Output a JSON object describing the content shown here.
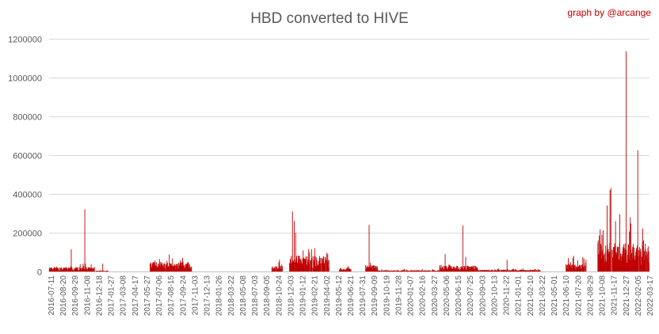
{
  "chart_data": {
    "type": "bar",
    "title": "HBD converted to HIVE",
    "credit": "graph by @arcange",
    "xlabel": "",
    "ylabel": "",
    "ylim": [
      0,
      1200000
    ],
    "yticks": [
      0,
      200000,
      400000,
      600000,
      800000,
      1000000,
      1200000
    ],
    "ytick_labels": [
      "0",
      "200000",
      "400000",
      "600000",
      "800000",
      "1000000",
      "1200000"
    ],
    "x_range": [
      "2016-07-11",
      "2022-03-17"
    ],
    "xtick_labels": [
      "2016-07-11",
      "2016-08-20",
      "2016-09-29",
      "2016-11-08",
      "2016-12-18",
      "2017-01-27",
      "2017-03-08",
      "2017-04-17",
      "2017-05-27",
      "2017-07-06",
      "2017-08-15",
      "2017-09-24",
      "2017-11-03",
      "2017-12-13",
      "2018-01-26",
      "2018-03-22",
      "2018-05-08",
      "2018-07-03",
      "2018-09-05",
      "2018-10-24",
      "2018-12-03",
      "2019-01-12",
      "2019-02-21",
      "2019-04-02",
      "2019-05-12",
      "2019-06-21",
      "2019-07-31",
      "2019-09-09",
      "2019-10-19",
      "2019-11-28",
      "2020-01-07",
      "2020-02-16",
      "2020-03-27",
      "2020-05-06",
      "2020-06-15",
      "2020-07-25",
      "2020-09-03",
      "2020-10-13",
      "2020-11-22",
      "2021-01-01",
      "2021-02-10",
      "2021-03-22",
      "2021-05-01",
      "2021-06-10",
      "2021-07-20",
      "2021-08-29",
      "2021-10-08",
      "2021-11-17",
      "2021-12-27",
      "2022-02-05",
      "2022-03-17"
    ],
    "grid": true,
    "legend": "none",
    "colors": {
      "bar": "#c00000",
      "title": "#595959",
      "credit": "#c00000",
      "grid": "#d9d9d9"
    },
    "segments": [
      {
        "from": "2016-07-11",
        "to": "2016-12-15",
        "base": 14000,
        "amp": 12000
      },
      {
        "from": "2016-12-16",
        "to": "2017-01-30",
        "base": 2500,
        "amp": 2500
      },
      {
        "from": "2017-06-25",
        "to": "2017-11-15",
        "base": 30000,
        "amp": 18000
      },
      {
        "from": "2018-08-20",
        "to": "2018-09-25",
        "base": 18000,
        "amp": 20000
      },
      {
        "from": "2018-10-20",
        "to": "2019-03-05",
        "base": 50000,
        "amp": 40000
      },
      {
        "from": "2019-04-10",
        "to": "2019-05-20",
        "base": 12000,
        "amp": 10000
      },
      {
        "from": "2019-07-10",
        "to": "2019-08-20",
        "base": 20000,
        "amp": 18000
      },
      {
        "from": "2019-08-21",
        "to": "2020-03-20",
        "base": 4000,
        "amp": 5000
      },
      {
        "from": "2020-03-21",
        "to": "2020-07-31",
        "base": 18000,
        "amp": 16000
      },
      {
        "from": "2020-08-01",
        "to": "2021-03-05",
        "base": 6000,
        "amp": 7000
      },
      {
        "from": "2021-06-01",
        "to": "2021-08-10",
        "base": 25000,
        "amp": 25000
      },
      {
        "from": "2021-09-20",
        "to": "2022-03-17",
        "base": 90000,
        "amp": 80000
      }
    ],
    "spikes": [
      {
        "x": "2016-07-28",
        "y": 22000
      },
      {
        "x": "2016-09-25",
        "y": 115000
      },
      {
        "x": "2016-11-05",
        "y": 40000
      },
      {
        "x": "2016-11-11",
        "y": 320000
      },
      {
        "x": "2017-01-12",
        "y": 40000
      },
      {
        "x": "2017-08-30",
        "y": 88000
      },
      {
        "x": "2017-10-15",
        "y": 70000
      },
      {
        "x": "2018-09-15",
        "y": 60000
      },
      {
        "x": "2018-10-30",
        "y": 310000
      },
      {
        "x": "2018-11-05",
        "y": 260000
      },
      {
        "x": "2018-11-10",
        "y": 200000
      },
      {
        "x": "2018-12-25",
        "y": 115000
      },
      {
        "x": "2019-01-15",
        "y": 120000
      },
      {
        "x": "2019-03-01",
        "y": 90000
      },
      {
        "x": "2019-07-22",
        "y": 240000
      },
      {
        "x": "2020-04-10",
        "y": 90000
      },
      {
        "x": "2020-06-10",
        "y": 238000
      },
      {
        "x": "2020-06-20",
        "y": 75000
      },
      {
        "x": "2020-11-10",
        "y": 60000
      },
      {
        "x": "2021-06-28",
        "y": 80000
      },
      {
        "x": "2021-10-22",
        "y": 340000
      },
      {
        "x": "2021-11-01",
        "y": 420000
      },
      {
        "x": "2021-11-04",
        "y": 430000
      },
      {
        "x": "2021-11-20",
        "y": 260000
      },
      {
        "x": "2021-12-05",
        "y": 295000
      },
      {
        "x": "2021-12-27",
        "y": 1135000
      },
      {
        "x": "2022-01-10",
        "y": 280000
      },
      {
        "x": "2022-02-05",
        "y": 625000
      },
      {
        "x": "2022-02-25",
        "y": 160000
      },
      {
        "x": "2022-03-12",
        "y": 120000
      }
    ]
  }
}
